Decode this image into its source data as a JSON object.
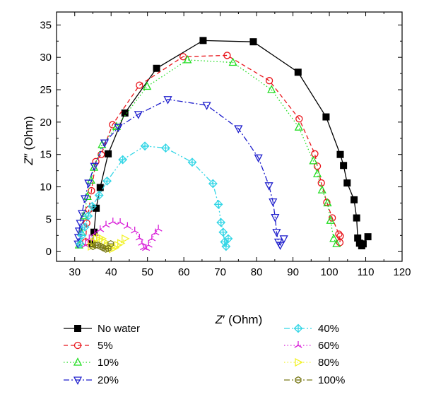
{
  "chart_data": {
    "type": "scatter",
    "title": "",
    "xlabel": "Z' (Ohm)",
    "ylabel": "Z'' (Ohm)",
    "xlabel_parts": {
      "symbol": "Z",
      "prime": "′",
      "unit": " (Ohm)"
    },
    "ylabel_parts": {
      "symbol": "Z",
      "prime": "″",
      "unit": " (Ohm)"
    },
    "xlim": [
      25,
      120
    ],
    "ylim": [
      -1.5,
      37
    ],
    "xticks": [
      30,
      40,
      50,
      60,
      70,
      80,
      90,
      100,
      110,
      120
    ],
    "yticks": [
      0,
      5,
      10,
      15,
      20,
      25,
      30,
      35
    ],
    "grid": false,
    "legend_position": "below",
    "series": [
      {
        "name": "No water",
        "color": "#000000",
        "marker": "square-filled",
        "dash": "solid",
        "x": [
          34.8,
          35.3,
          35.9,
          37.0,
          39.2,
          43.8,
          52.5,
          65.3,
          79.1,
          91.4,
          99.1,
          103.0,
          103.9,
          104.9,
          106.8,
          107.5,
          107.8,
          108.3,
          108.9,
          109.3,
          110.6
        ],
        "y": [
          1.2,
          3.0,
          6.7,
          9.9,
          15.1,
          21.4,
          28.3,
          32.6,
          32.4,
          27.7,
          20.8,
          15.0,
          13.3,
          10.6,
          8.0,
          5.2,
          2.1,
          1.3,
          0.9,
          1.2,
          2.3
        ]
      },
      {
        "name": "5%",
        "color": "#e8141a",
        "marker": "circle-open",
        "dash": "dashed",
        "x": [
          33.0,
          33.3,
          33.9,
          34.6,
          35.8,
          37.3,
          40.4,
          47.8,
          59.8,
          71.9,
          83.5,
          91.7,
          96.0,
          96.7,
          97.8,
          99.3,
          100.8,
          102.6,
          102.9,
          103.0
        ],
        "y": [
          1.5,
          4.4,
          6.5,
          9.4,
          13.9,
          15.0,
          19.6,
          25.7,
          30.1,
          30.3,
          26.4,
          20.5,
          15.1,
          13.2,
          10.6,
          7.6,
          5.2,
          2.7,
          1.4,
          2.4
        ]
      },
      {
        "name": "10%",
        "color": "#22dd22",
        "marker": "triangle-up-open",
        "dash": "dotted",
        "x": [
          31.2,
          31.8,
          32.5,
          33.5,
          34.5,
          35.3,
          37.5,
          41.5,
          49.9,
          61.0,
          73.5,
          84.1,
          91.6,
          95.6,
          96.7,
          98.0,
          99.5,
          100.3,
          101.2,
          102.0
        ],
        "y": [
          1.0,
          3.0,
          5.5,
          8.5,
          11.0,
          13.0,
          16.5,
          19.3,
          25.5,
          29.6,
          29.2,
          25.0,
          19.2,
          14.0,
          12.0,
          9.5,
          7.5,
          4.8,
          2.0,
          1.2
        ]
      },
      {
        "name": "20%",
        "color": "#1f1fcc",
        "marker": "triangle-down-open",
        "dash": "dashdot",
        "x": [
          30.9,
          31.0,
          31.2,
          31.5,
          32.0,
          32.8,
          33.8,
          35.4,
          38.2,
          42.0,
          47.5,
          55.6,
          66.3,
          75.0,
          80.5,
          83.4,
          84.5,
          85.1,
          85.5,
          86.0,
          86.5,
          87.5
        ],
        "y": [
          1.2,
          2.2,
          3.2,
          4.4,
          5.9,
          8.2,
          10.6,
          13.2,
          16.8,
          19.2,
          21.2,
          23.5,
          22.6,
          19.0,
          14.5,
          10.2,
          7.7,
          5.3,
          3.0,
          1.5,
          1.0,
          2.0
        ]
      },
      {
        "name": "40%",
        "color": "#33d6e6",
        "marker": "diamond-cross-open",
        "dash": "dashdotdot",
        "x": [
          31.5,
          32.0,
          32.8,
          33.7,
          34.8,
          36.7,
          38.9,
          43.2,
          49.3,
          55.0,
          62.3,
          68.0,
          69.5,
          70.2,
          70.8,
          71.2,
          71.6,
          72.2
        ],
        "y": [
          1.2,
          2.5,
          3.8,
          5.5,
          7.0,
          8.7,
          10.9,
          14.2,
          16.3,
          16.0,
          13.8,
          10.5,
          7.3,
          4.5,
          3.0,
          1.5,
          0.8,
          2.0
        ]
      },
      {
        "name": "60%",
        "color": "#d81fd8",
        "marker": "star-open",
        "dash": "dotted",
        "x": [
          33.0,
          34.0,
          35.5,
          37.0,
          38.6,
          40.5,
          42.5,
          44.5,
          46.5,
          47.8,
          48.5,
          49.0,
          49.6,
          50.3,
          51.2,
          52.2,
          53.0
        ],
        "y": [
          1.0,
          2.0,
          2.8,
          3.4,
          4.1,
          4.6,
          4.5,
          3.9,
          3.2,
          2.1,
          1.3,
          0.6,
          0.5,
          1.0,
          2.0,
          2.9,
          3.5
        ]
      },
      {
        "name": "80%",
        "color": "#f2f22a",
        "marker": "triangle-right-open",
        "dash": "dotted",
        "x": [
          34.5,
          35.3,
          36.0,
          36.8,
          37.5,
          38.2,
          38.9,
          39.6,
          40.3,
          41.0,
          41.8,
          42.6,
          43.8
        ],
        "y": [
          0.8,
          1.5,
          2.0,
          2.2,
          2.0,
          1.5,
          1.0,
          0.5,
          0.4,
          0.6,
          1.0,
          1.3,
          2.0
        ]
      },
      {
        "name": "100%",
        "color": "#7a7a1a",
        "marker": "hexagon-open",
        "dash": "dashdot",
        "x": [
          35.0,
          35.7,
          36.4,
          37.1,
          37.8,
          38.5,
          39.2,
          39.9
        ],
        "y": [
          0.8,
          1.0,
          1.0,
          0.8,
          0.6,
          0.4,
          0.5,
          1.2
        ]
      }
    ]
  }
}
